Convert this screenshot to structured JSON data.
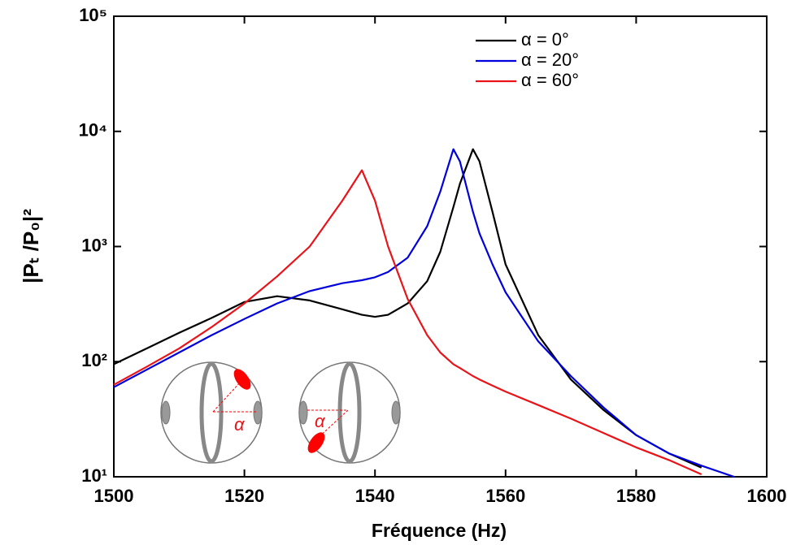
{
  "chart_data": {
    "type": "line",
    "xlabel": "Fréquence (Hz)",
    "ylabel": "|Pₜ /P₀|²",
    "x": [
      1500,
      1505,
      1510,
      1515,
      1520,
      1525,
      1530,
      1535,
      1538,
      1540,
      1542,
      1545,
      1548,
      1550,
      1552,
      1553,
      1555,
      1556,
      1558,
      1560,
      1565,
      1570,
      1575,
      1580,
      1585,
      1590,
      1595
    ],
    "series": [
      {
        "name": "α = 0°",
        "color": "#000000",
        "values": [
          95,
          130,
          178,
          240,
          330,
          370,
          340,
          285,
          255,
          245,
          255,
          320,
          500,
          900,
          2200,
          3500,
          7000,
          5500,
          2000,
          700,
          170,
          70,
          38,
          23,
          16,
          12,
          null
        ]
      },
      {
        "name": "α = 20°",
        "color": "#0000dd",
        "values": [
          60,
          85,
          120,
          170,
          235,
          320,
          410,
          480,
          510,
          540,
          600,
          800,
          1500,
          3000,
          7000,
          5500,
          2000,
          1300,
          700,
          400,
          150,
          75,
          40,
          23,
          16,
          12.5,
          10
        ]
      },
      {
        "name": "α = 60°",
        "color": "#e8141a",
        "values": [
          63,
          90,
          130,
          200,
          320,
          550,
          1000,
          2500,
          4600,
          2500,
          1000,
          350,
          170,
          120,
          95,
          88,
          75,
          70,
          62,
          55,
          42,
          32,
          24,
          18,
          14,
          10.5,
          null
        ]
      }
    ],
    "xlim": [
      1500,
      1600
    ],
    "xticks": [
      1500,
      1520,
      1540,
      1560,
      1580,
      1600
    ],
    "ylim": [
      10,
      100000
    ],
    "yscale": "log",
    "yticks": [
      {
        "value": 10,
        "label": "10¹"
      },
      {
        "value": 100,
        "label": "10²"
      },
      {
        "value": 1000,
        "label": "10³"
      },
      {
        "value": 10000,
        "label": "10⁴"
      },
      {
        "value": 100000,
        "label": "10⁵"
      }
    ],
    "legend": "upper right",
    "annotations": [
      "α",
      "α"
    ]
  }
}
